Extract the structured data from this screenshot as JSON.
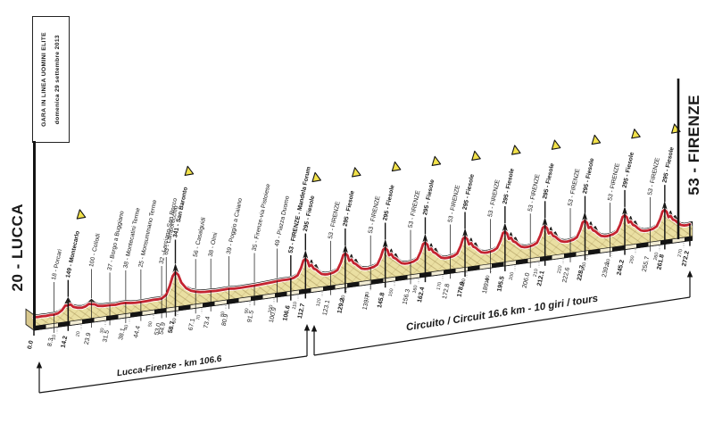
{
  "page": {
    "background": "#ffffff"
  },
  "header_box": {
    "line1": "GARA IN LINEA UOMINI ELITE",
    "line2": "domenica 29 settembre 2013"
  },
  "start_label": "20 - LUCCA",
  "finish_label": "53 - FIRENZE",
  "chart_data": {
    "type": "area",
    "x_unit": "km",
    "total_distance_km": 272.2,
    "start": {
      "km_label": "0.0",
      "name": "20 - LUCCA",
      "elevation_m": 20
    },
    "finish": {
      "km_label": "272.2",
      "name": "53 - FIRENZE",
      "elevation_m": 53
    },
    "segments": [
      {
        "label": "Lucca-Firenze - km 106.6",
        "from_km": 0,
        "to_km": 106.6
      },
      {
        "label": "Circuito / Circuit 16.6 km - 10 giri / tours",
        "from_km": 112.7,
        "to_km": 272.2
      }
    ],
    "km_marks": [
      10,
      20,
      30,
      40,
      50,
      60,
      70,
      80,
      90,
      100,
      110,
      120,
      130,
      140,
      150,
      160,
      170,
      180,
      190,
      200,
      210,
      220,
      230,
      240,
      250,
      260,
      270
    ],
    "landmarks": [
      {
        "km": 8.3,
        "label": "18 - Porcari",
        "bold": 0,
        "tri": 0,
        "leader": 34
      },
      {
        "km": 14.2,
        "label": "149 - Montecarlo",
        "bold": 1,
        "tri": 1,
        "leader": 20
      },
      {
        "km": 23.9,
        "label": "100 - Collodi",
        "bold": 0,
        "tri": 0,
        "leader": 34
      },
      {
        "km": 31.5,
        "label": "37 - Borgo a Buggiano",
        "bold": 0,
        "tri": 0,
        "leader": 34
      },
      {
        "km": 38.1,
        "label": "38 - Montecatini Terme",
        "bold": 0,
        "tri": 0,
        "leader": 34
      },
      {
        "km": 44.4,
        "label": "25 - Monsummano Terme",
        "bold": 0,
        "tri": 0,
        "leader": 34
      },
      {
        "km": 53.0,
        "label": "32 - Larciano-San Rocco",
        "bold": 0,
        "tri": 0,
        "leader": 34
      },
      {
        "km": 54.9,
        "label": "63 - Lamporecchio",
        "bold": 0,
        "tri": 0,
        "leader": 40
      },
      {
        "km": 58.7,
        "label": "341 - San Baronto",
        "bold": 1,
        "tri": 1,
        "leader": 28
      },
      {
        "km": 67.1,
        "label": "56 - Casalguidi",
        "bold": 0,
        "tri": 0,
        "leader": 34
      },
      {
        "km": 73.4,
        "label": "38 - Olmi",
        "bold": 0,
        "tri": 0,
        "leader": 34
      },
      {
        "km": 80.9,
        "label": "39 - Poggio a Caiano",
        "bold": 0,
        "tri": 0,
        "leader": 34
      },
      {
        "km": 91.5,
        "label": "35 - Firenze-via Pistoiese",
        "bold": 0,
        "tri": 0,
        "leader": 34
      },
      {
        "km": 100.9,
        "label": "49 - Piazza Duomo",
        "bold": 0,
        "tri": 0,
        "leader": 34
      },
      {
        "km": 106.6,
        "label": "53 - FIRENZE - Mandela Forum",
        "bold": 1,
        "tri": 0,
        "leader": 24
      },
      {
        "km": 112.7,
        "label": "295 - Fiesole",
        "bold": 1,
        "tri": 1,
        "leader": 20
      },
      {
        "km": 123.1,
        "label": "53 - FIRENZE",
        "bold": 0,
        "tri": 0,
        "leader": 34
      },
      {
        "km": 129.2,
        "label": "295 - Fiesole",
        "bold": 1,
        "tri": 1,
        "leader": 20
      },
      {
        "km": 139.7,
        "label": "53 - FIRENZE",
        "bold": 0,
        "tri": 0,
        "leader": 34
      },
      {
        "km": 145.8,
        "label": "295 - Fiesole",
        "bold": 1,
        "tri": 1,
        "leader": 20
      },
      {
        "km": 156.3,
        "label": "53 - FIRENZE",
        "bold": 0,
        "tri": 0,
        "leader": 34
      },
      {
        "km": 162.4,
        "label": "295 - Fiesole",
        "bold": 1,
        "tri": 1,
        "leader": 20
      },
      {
        "km": 172.8,
        "label": "53 - FIRENZE",
        "bold": 0,
        "tri": 0,
        "leader": 34
      },
      {
        "km": 178.9,
        "label": "295 - Fiesole",
        "bold": 1,
        "tri": 1,
        "leader": 20
      },
      {
        "km": 189.4,
        "label": "53 - FIRENZE",
        "bold": 0,
        "tri": 0,
        "leader": 34
      },
      {
        "km": 195.5,
        "label": "295 - Fiesole",
        "bold": 1,
        "tri": 1,
        "leader": 20
      },
      {
        "km": 206.0,
        "label": "53 - FIRENZE",
        "bold": 0,
        "tri": 0,
        "leader": 34
      },
      {
        "km": 212.1,
        "label": "295 - Fiesole",
        "bold": 1,
        "tri": 1,
        "leader": 20
      },
      {
        "km": 222.6,
        "label": "53 - FIRENZE",
        "bold": 0,
        "tri": 0,
        "leader": 34
      },
      {
        "km": 228.7,
        "label": "295 - Fiesole",
        "bold": 1,
        "tri": 1,
        "leader": 20
      },
      {
        "km": 239.1,
        "label": "53 - FIRENZE",
        "bold": 0,
        "tri": 0,
        "leader": 34
      },
      {
        "km": 245.2,
        "label": "295 - Fiesole",
        "bold": 1,
        "tri": 1,
        "leader": 20
      },
      {
        "km": 255.7,
        "label": "53 - FIRENZE",
        "bold": 0,
        "tri": 0,
        "leader": 34
      },
      {
        "km": 261.8,
        "label": "295 - Fiesole",
        "bold": 1,
        "tri": 1,
        "leader": 20
      }
    ],
    "profile_route_points": [
      [
        0,
        20,
        0
      ],
      [
        1.5,
        16,
        0
      ],
      [
        3.2,
        18,
        0
      ],
      [
        5,
        15,
        0
      ],
      [
        6.6,
        19,
        0
      ],
      [
        8.3,
        18,
        0
      ],
      [
        10,
        26,
        0
      ],
      [
        11.6,
        50,
        0
      ],
      [
        13,
        95,
        0
      ],
      [
        14.2,
        149,
        1
      ],
      [
        15.2,
        100,
        0
      ],
      [
        16.4,
        70,
        0
      ],
      [
        18,
        56,
        0
      ],
      [
        20,
        50,
        0
      ],
      [
        21.4,
        58,
        0
      ],
      [
        22.8,
        80,
        0
      ],
      [
        23.9,
        100,
        0.5
      ],
      [
        25.2,
        68,
        0
      ],
      [
        26.6,
        46,
        0
      ],
      [
        28.6,
        38,
        0
      ],
      [
        31.5,
        37,
        0
      ],
      [
        33.8,
        33,
        0
      ],
      [
        36,
        39,
        0
      ],
      [
        38.1,
        38,
        0
      ],
      [
        40.2,
        29,
        0
      ],
      [
        42.2,
        25,
        0
      ],
      [
        44.4,
        25,
        0
      ],
      [
        47,
        27,
        0
      ],
      [
        49.6,
        31,
        0
      ],
      [
        51.6,
        29,
        0
      ],
      [
        53,
        32,
        0
      ],
      [
        54.9,
        63,
        0
      ],
      [
        56.4,
        155,
        0
      ],
      [
        57.6,
        250,
        0
      ],
      [
        58.7,
        341,
        1
      ],
      [
        59.9,
        255,
        0
      ],
      [
        61.2,
        170,
        0
      ],
      [
        63.2,
        105,
        0
      ],
      [
        65.2,
        72,
        0
      ],
      [
        67.1,
        56,
        0
      ],
      [
        69,
        45,
        0
      ],
      [
        71.2,
        39,
        0
      ],
      [
        73.4,
        38,
        0
      ],
      [
        75.6,
        34,
        0
      ],
      [
        77.6,
        36,
        0
      ],
      [
        79.2,
        38,
        0
      ],
      [
        80.9,
        39,
        0
      ],
      [
        83.2,
        33,
        0
      ],
      [
        85.6,
        32,
        0
      ],
      [
        88.2,
        33,
        0
      ],
      [
        91.5,
        35,
        0
      ],
      [
        94,
        38,
        0
      ],
      [
        96.6,
        41,
        0
      ],
      [
        99,
        45,
        0
      ],
      [
        100.9,
        49,
        0
      ],
      [
        103.2,
        51,
        0
      ],
      [
        105,
        52,
        0
      ],
      [
        106.6,
        53,
        0
      ]
    ],
    "circuit_lap": {
      "start_km": 106.6,
      "lap_km": 16.56,
      "laps": 10,
      "points": [
        [
          0,
          53,
          0
        ],
        [
          1.3,
          60,
          0
        ],
        [
          2.8,
          80,
          0
        ],
        [
          4.2,
          150,
          0
        ],
        [
          5.2,
          225,
          0
        ],
        [
          6.1,
          295,
          1
        ],
        [
          7.0,
          215,
          0
        ],
        [
          7.7,
          158,
          0
        ],
        [
          8.6,
          196,
          0.5
        ],
        [
          9.5,
          128,
          0
        ],
        [
          10.5,
          142,
          0.5
        ],
        [
          11.5,
          88,
          0
        ],
        [
          12.8,
          60,
          0
        ],
        [
          14.2,
          50,
          0
        ],
        [
          15.4,
          49,
          0
        ]
      ],
      "final_point": [
        272.2,
        53,
        0
      ]
    },
    "colors": {
      "terrain_fill": "#eadfa2",
      "terrain_dark": "#4e4639",
      "outline": "#141414",
      "route_red": "#c42430",
      "casing": "#ffffff",
      "band_dark": "#141414",
      "band_light": "#f2ecd4",
      "triangle": "#f2e24a",
      "side_cap": "#d8c88e",
      "text": "#1a1a1a"
    }
  }
}
